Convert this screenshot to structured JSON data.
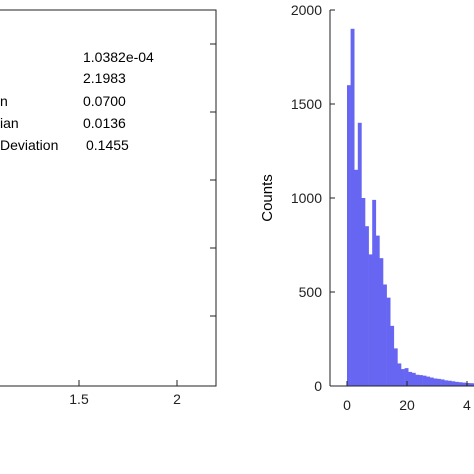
{
  "chart_data": [
    {
      "type": "table",
      "stats": [
        {
          "label": "",
          "value": "1.0382e-04"
        },
        {
          "label": "",
          "value": "2.1983"
        },
        {
          "label": "n",
          "value": "0.0700"
        },
        {
          "label": "ian",
          "value": "0.0136"
        },
        {
          "label": "Deviation",
          "value": "0.1455"
        }
      ],
      "x_ticks": [
        "1.5",
        "2"
      ]
    },
    {
      "type": "bar",
      "ylabel": "Counts",
      "xlabel": "",
      "ylim": [
        0,
        2000
      ],
      "y_ticks": [
        0,
        500,
        1000,
        1500,
        2000
      ],
      "x_ticks": [
        "0",
        "20",
        "4"
      ],
      "bin_width": 1.2,
      "bin_start": 0,
      "values": [
        1600,
        1900,
        1150,
        1400,
        1000,
        850,
        700,
        990,
        800,
        680,
        540,
        470,
        320,
        200,
        120,
        90,
        95,
        75,
        70,
        60,
        58,
        55,
        50,
        45,
        40,
        38,
        35,
        30,
        28,
        25,
        22,
        20,
        18,
        16,
        15,
        14,
        12,
        11,
        10,
        10
      ],
      "bar_color": "#6666f2"
    }
  ]
}
